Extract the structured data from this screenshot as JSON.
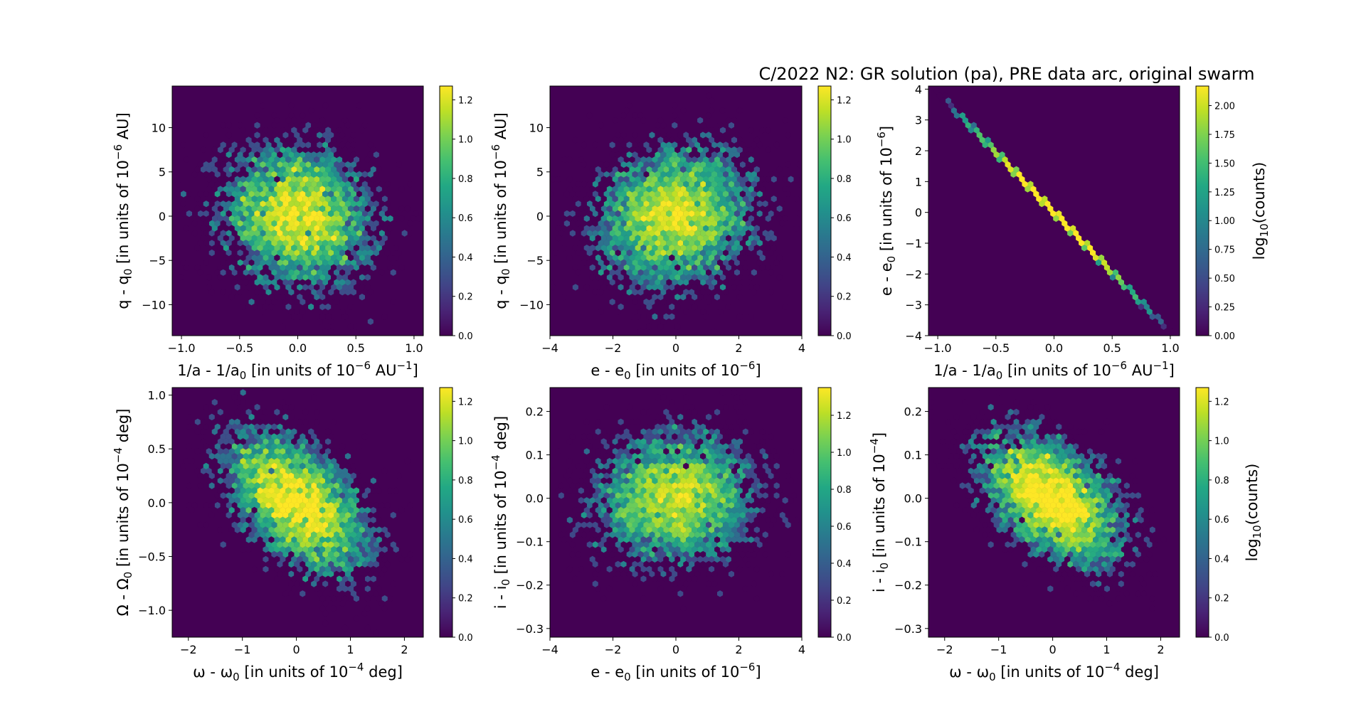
{
  "figure_title": "C/2022 N2: GR solution (pa), PRE data arc, original swarm",
  "colormap": "viridis",
  "background_color": "#440154",
  "chart_data": [
    {
      "type": "heatmap",
      "subtype": "hexbin",
      "xlabel": {
        "main": "1/a - 1/a",
        "sub": "0",
        "after": " [in units of 10",
        "sup": "−6",
        "end": " AU",
        "sup2": "−1",
        "end2": "]"
      },
      "ylabel": {
        "main": "q - q",
        "sub": "0",
        "after": " [in units of 10",
        "sup": "−6",
        "end": " AU]"
      },
      "xlim": [
        -1.08,
        1.08
      ],
      "ylim": [
        -13.5,
        14.7
      ],
      "xticks": [
        -1.0,
        -0.5,
        0.0,
        0.5,
        1.0
      ],
      "xtick_labels": [
        "−1.0",
        "−0.5",
        "0.0",
        "0.5",
        "1.0"
      ],
      "yticks": [
        -10,
        -5,
        0,
        5,
        10
      ],
      "ytick_labels": [
        "−10",
        "−5",
        "0",
        "5",
        "10"
      ],
      "distribution": {
        "mean_x": 0.0,
        "mean_y": 0.0,
        "sd_x": 0.32,
        "sd_y": 4.0,
        "correlation": -0.12
      },
      "colorbar": {
        "label": "",
        "max": 1.27,
        "ticks": [
          0.0,
          0.2,
          0.4,
          0.6,
          0.8,
          1.0,
          1.2
        ],
        "tick_labels": [
          "0.0",
          "0.2",
          "0.4",
          "0.6",
          "0.8",
          "1.0",
          "1.2"
        ]
      }
    },
    {
      "type": "heatmap",
      "subtype": "hexbin",
      "xlabel": {
        "main": "e - e",
        "sub": "0",
        "after": " [in units of 10",
        "sup": "−6",
        "end": "]"
      },
      "ylabel": {
        "main": "q - q",
        "sub": "0",
        "after": " [in units of 10",
        "sup": "−6",
        "end": " AU]"
      },
      "xlim": [
        -4.0,
        4.0
      ],
      "ylim": [
        -13.5,
        14.7
      ],
      "xticks": [
        -4,
        -2,
        0,
        2,
        4
      ],
      "xtick_labels": [
        "−4",
        "−2",
        "0",
        "2",
        "4"
      ],
      "yticks": [
        -10,
        -5,
        0,
        5,
        10
      ],
      "ytick_labels": [
        "−10",
        "−5",
        "0",
        "5",
        "10"
      ],
      "distribution": {
        "mean_x": 0.0,
        "mean_y": 0.0,
        "sd_x": 1.25,
        "sd_y": 4.0,
        "correlation": 0.12
      },
      "colorbar": {
        "label": "",
        "max": 1.27,
        "ticks": [
          0.0,
          0.2,
          0.4,
          0.6,
          0.8,
          1.0,
          1.2
        ],
        "tick_labels": [
          "0.0",
          "0.2",
          "0.4",
          "0.6",
          "0.8",
          "1.0",
          "1.2"
        ]
      }
    },
    {
      "type": "heatmap",
      "subtype": "hexbin",
      "xlabel": {
        "main": "1/a - 1/a",
        "sub": "0",
        "after": " [in units of 10",
        "sup": "−6",
        "end": " AU",
        "sup2": "−1",
        "end2": "]"
      },
      "ylabel": {
        "main": "e - e",
        "sub": "0",
        "after": " [in units of 10",
        "sup": "−6",
        "end": "]"
      },
      "xlim": [
        -1.08,
        1.08
      ],
      "ylim": [
        -4.0,
        4.1
      ],
      "xticks": [
        -1.0,
        -0.5,
        0.0,
        0.5,
        1.0
      ],
      "xtick_labels": [
        "−1.0",
        "−0.5",
        "0.0",
        "0.5",
        "1.0"
      ],
      "yticks": [
        -4,
        -3,
        -2,
        -1,
        0,
        1,
        2,
        3,
        4
      ],
      "ytick_labels": [
        "−4",
        "−3",
        "−2",
        "−1",
        "0",
        "1",
        "2",
        "3",
        "4"
      ],
      "distribution": {
        "mean_x": 0.0,
        "mean_y": 0.0,
        "sd_x": 0.32,
        "sd_y": 1.25,
        "correlation": -1.0
      },
      "colorbar": {
        "label": "log10(counts)",
        "label_main": "log",
        "label_sub": "10",
        "label_after": "(counts)",
        "max": 2.17,
        "ticks": [
          0.0,
          0.25,
          0.5,
          0.75,
          1.0,
          1.25,
          1.5,
          1.75,
          2.0
        ],
        "tick_labels": [
          "0.00",
          "0.25",
          "0.50",
          "0.75",
          "1.00",
          "1.25",
          "1.50",
          "1.75",
          "2.00"
        ]
      }
    },
    {
      "type": "heatmap",
      "subtype": "hexbin",
      "xlabel": {
        "main": "ω - ω",
        "sub": "0",
        "after": " [in units of 10",
        "sup": "−4",
        "end": " deg]"
      },
      "ylabel": {
        "main": "Ω - Ω",
        "sub": "0",
        "after": " [in units of 10",
        "sup": "−4",
        "end": " deg]"
      },
      "xlim": [
        -2.3,
        2.35
      ],
      "ylim": [
        -1.25,
        1.07
      ],
      "xticks": [
        -2,
        -1,
        0,
        1,
        2
      ],
      "xtick_labels": [
        "−2",
        "−1",
        "0",
        "1",
        "2"
      ],
      "yticks": [
        -1.0,
        -0.5,
        0.0,
        0.5,
        1.0
      ],
      "ytick_labels": [
        "−1.0",
        "−0.5",
        "0.0",
        "0.5",
        "1.0"
      ],
      "distribution": {
        "mean_x": 0.0,
        "mean_y": 0.0,
        "sd_x": 0.65,
        "sd_y": 0.33,
        "correlation": -0.5
      },
      "colorbar": {
        "label": "",
        "max": 1.27,
        "ticks": [
          0.0,
          0.2,
          0.4,
          0.6,
          0.8,
          1.0,
          1.2
        ],
        "tick_labels": [
          "0.0",
          "0.2",
          "0.4",
          "0.6",
          "0.8",
          "1.0",
          "1.2"
        ]
      }
    },
    {
      "type": "heatmap",
      "subtype": "hexbin",
      "xlabel": {
        "main": "e - e",
        "sub": "0",
        "after": " [in units of 10",
        "sup": "−6",
        "end": "]"
      },
      "ylabel": {
        "main": "i - i",
        "sub": "0",
        "after": " [in units of 10",
        "sup": "−4",
        "end": " deg]"
      },
      "xlim": [
        -4.0,
        4.0
      ],
      "ylim": [
        -0.32,
        0.255
      ],
      "xticks": [
        -4,
        -2,
        0,
        2,
        4
      ],
      "xtick_labels": [
        "−4",
        "−2",
        "0",
        "2",
        "4"
      ],
      "yticks": [
        -0.3,
        -0.2,
        -0.1,
        0.0,
        0.1,
        0.2
      ],
      "ytick_labels": [
        "−0.3",
        "−0.2",
        "−0.1",
        "0.0",
        "0.1",
        "0.2"
      ],
      "distribution": {
        "mean_x": 0.0,
        "mean_y": 0.0,
        "sd_x": 1.25,
        "sd_y": 0.075,
        "correlation": 0.05
      },
      "colorbar": {
        "label": "",
        "max": 1.35,
        "ticks": [
          0.0,
          0.2,
          0.4,
          0.6,
          0.8,
          1.0,
          1.2
        ],
        "tick_labels": [
          "0.0",
          "0.2",
          "0.4",
          "0.6",
          "0.8",
          "1.0",
          "1.2"
        ]
      }
    },
    {
      "type": "heatmap",
      "subtype": "hexbin",
      "xlabel": {
        "main": "ω - ω",
        "sub": "0",
        "after": " [in units of 10",
        "sup": "−4",
        "end": " deg]"
      },
      "ylabel": {
        "main": "i - i",
        "sub": "0",
        "after": " [in units of 10",
        "sup": "−4",
        "end": "]"
      },
      "xlim": [
        -2.3,
        2.35
      ],
      "ylim": [
        -0.32,
        0.255
      ],
      "xticks": [
        -2,
        -1,
        0,
        1,
        2
      ],
      "xtick_labels": [
        "−2",
        "−1",
        "0",
        "1",
        "2"
      ],
      "yticks": [
        -0.3,
        -0.2,
        -0.1,
        0.0,
        0.1,
        0.2
      ],
      "ytick_labels": [
        "−0.3",
        "−0.2",
        "−0.1",
        "0.0",
        "0.1",
        "0.2"
      ],
      "distribution": {
        "mean_x": 0.0,
        "mean_y": 0.0,
        "sd_x": 0.65,
        "sd_y": 0.075,
        "correlation": -0.5
      },
      "colorbar": {
        "label": "log10(counts)",
        "label_main": "log",
        "label_sub": "10",
        "label_after": "(counts)",
        "max": 1.27,
        "ticks": [
          0.0,
          0.2,
          0.4,
          0.6,
          0.8,
          1.0,
          1.2
        ],
        "tick_labels": [
          "0.0",
          "0.2",
          "0.4",
          "0.6",
          "0.8",
          "1.0",
          "1.2"
        ]
      }
    }
  ]
}
